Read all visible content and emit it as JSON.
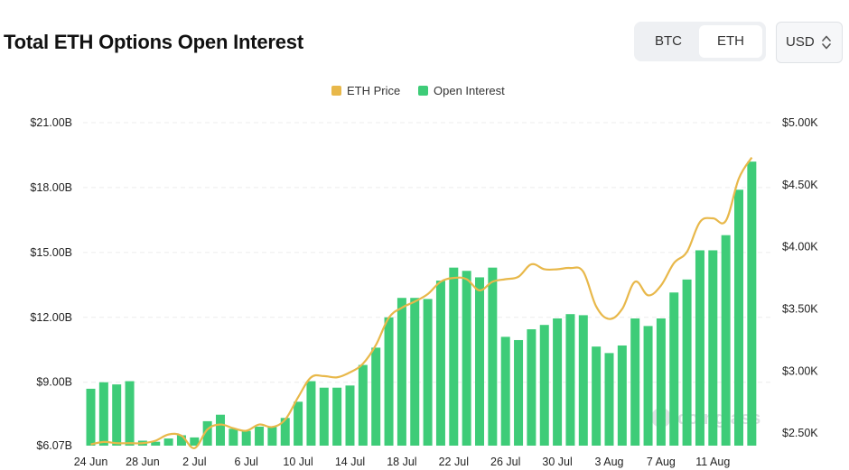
{
  "header": {
    "title": "Total ETH Options Open Interest"
  },
  "toggle": {
    "options": [
      "BTC",
      "ETH"
    ],
    "selected": "ETH"
  },
  "currency": {
    "label": "USD",
    "icon": "updown-chevron-icon"
  },
  "watermark": {
    "text": "coinglass",
    "icon": "coinglass-logo-icon"
  },
  "colors": {
    "bar": "#3ecc78",
    "line": "#e8b84a",
    "grid": "#ececec"
  },
  "chart_data": {
    "type": "bar",
    "title": "Total ETH Options Open Interest",
    "legend": [
      {
        "name": "ETH Price",
        "color": "#e8b84a"
      },
      {
        "name": "Open Interest",
        "color": "#3ecc78"
      }
    ],
    "legend_position": "top-center",
    "x_tick_labels": [
      "24 Jun",
      "28 Jun",
      "2 Jul",
      "6 Jul",
      "10 Jul",
      "14 Jul",
      "18 Jul",
      "22 Jul",
      "26 Jul",
      "30 Jul",
      "3 Aug",
      "7 Aug",
      "11 Aug"
    ],
    "x_tick_index": [
      0,
      4,
      8,
      12,
      16,
      20,
      24,
      28,
      32,
      36,
      40,
      44,
      48
    ],
    "y_left": {
      "min": 6.07,
      "max": 21.0,
      "unit": "B",
      "ticks": [
        6.07,
        9.0,
        12.0,
        15.0,
        18.0,
        21.0
      ],
      "tick_labels": [
        "$6.07B",
        "$9.00B",
        "$12.00B",
        "$15.00B",
        "$18.00B",
        "$21.00B"
      ]
    },
    "y_right": {
      "min": 2.4,
      "max": 5.0,
      "unit": "K",
      "ticks": [
        2.5,
        3.0,
        3.5,
        4.0,
        4.5,
        5.0
      ],
      "tick_labels": [
        "$2.50K",
        "$3.00K",
        "$3.50K",
        "$4.00K",
        "$4.50K",
        "$5.00K"
      ]
    },
    "grid": true,
    "series": [
      {
        "name": "Open Interest",
        "type": "bar",
        "unit": "B USD",
        "values": [
          8.7,
          9.0,
          8.9,
          9.05,
          6.3,
          6.25,
          6.4,
          6.55,
          6.45,
          7.2,
          7.5,
          6.85,
          6.75,
          6.95,
          6.95,
          7.35,
          8.1,
          9.05,
          8.75,
          8.75,
          8.85,
          9.8,
          10.6,
          12.0,
          12.9,
          12.9,
          12.85,
          13.7,
          14.3,
          14.15,
          13.85,
          14.3,
          11.1,
          10.95,
          11.45,
          11.65,
          11.95,
          12.15,
          12.1,
          10.65,
          10.35,
          10.7,
          11.95,
          11.6,
          11.95,
          13.15,
          13.75,
          15.1,
          15.1,
          15.8,
          17.9,
          19.2
        ]
      },
      {
        "name": "ETH Price",
        "type": "line",
        "unit": "K USD",
        "values": [
          2.41,
          2.43,
          2.42,
          2.42,
          2.42,
          2.44,
          2.49,
          2.48,
          2.38,
          2.53,
          2.57,
          2.54,
          2.52,
          2.57,
          2.55,
          2.61,
          2.79,
          2.95,
          2.96,
          2.95,
          2.99,
          3.06,
          3.21,
          3.43,
          3.51,
          3.56,
          3.62,
          3.72,
          3.75,
          3.74,
          3.65,
          3.72,
          3.74,
          3.76,
          3.86,
          3.82,
          3.82,
          3.83,
          3.8,
          3.52,
          3.42,
          3.5,
          3.72,
          3.61,
          3.69,
          3.87,
          3.96,
          4.2,
          4.23,
          4.21,
          4.55,
          4.72
        ]
      }
    ]
  }
}
